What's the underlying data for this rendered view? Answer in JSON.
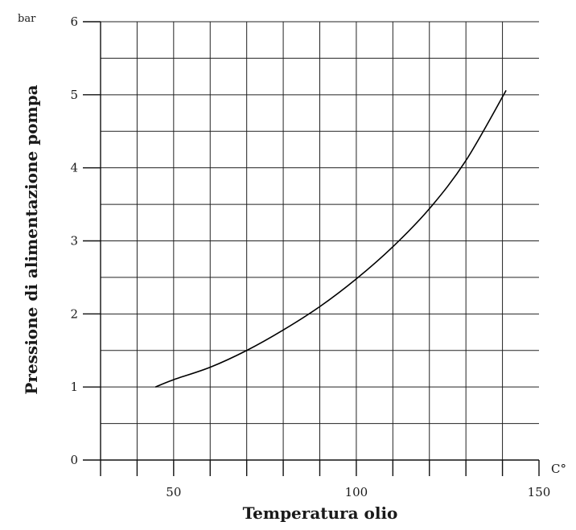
{
  "chart_data": {
    "type": "line",
    "title": "",
    "xlabel": "Temperatura olio",
    "ylabel": "Pressione di alimentazione pompa",
    "x_unit": "C°",
    "y_unit": "bar",
    "xlim": [
      30,
      150
    ],
    "ylim": [
      0,
      6
    ],
    "x_ticks": [
      50,
      100,
      150
    ],
    "y_ticks": [
      0,
      1,
      2,
      3,
      4,
      5,
      6
    ],
    "x_grid_step": 10,
    "y_grid_step": 0.5,
    "grid": true,
    "series": [
      {
        "x": [
          45,
          50,
          60,
          70,
          80,
          90,
          100,
          110,
          120,
          130,
          141
        ],
        "values": [
          1.0,
          1.1,
          1.27,
          1.5,
          1.78,
          2.1,
          2.48,
          2.92,
          3.44,
          4.1,
          5.06
        ]
      }
    ]
  }
}
